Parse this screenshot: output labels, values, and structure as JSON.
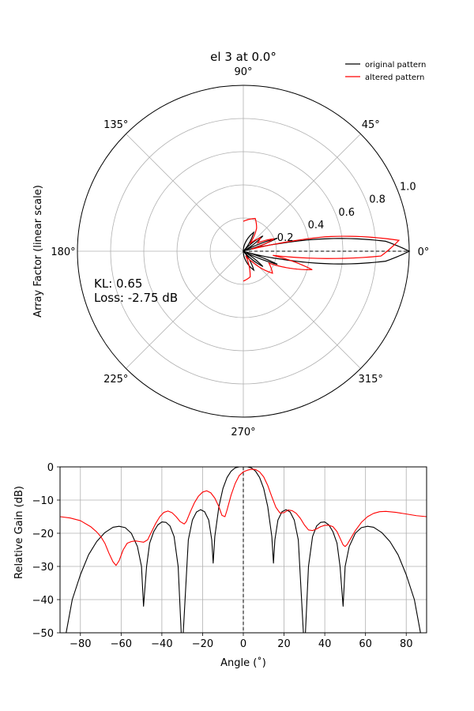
{
  "chart_data": [
    {
      "type": "line",
      "projection": "polar",
      "title": "el 3 at 0.0°",
      "ylabel": "Array Factor (linear scale)",
      "theta_tick_labels": [
        "0°",
        "45°",
        "90°",
        "135°",
        "180°",
        "225°",
        "270°",
        "315°"
      ],
      "r_tick_labels": [
        "0.2",
        "0.4",
        "0.6",
        "0.8",
        "1.0"
      ],
      "rlim": [
        0,
        1.0
      ],
      "grid": true,
      "legend_position": "top-right",
      "annotation": [
        "KL: 0.65",
        "Loss: -2.75 dB"
      ],
      "reference_line": {
        "theta_deg": 0,
        "style": "dashed",
        "r": [
          0,
          1.0
        ]
      },
      "series": [
        {
          "name": "original pattern",
          "color": "#000000",
          "x_unit": "theta_deg",
          "x": [
            0,
            4,
            8,
            12,
            16,
            21,
            26,
            30,
            38,
            48,
            61,
            75,
            90
          ],
          "y": [
            1.0,
            0.86,
            0.55,
            0.22,
            0.02,
            0.22,
            0.05,
            0.0,
            0.15,
            0.0,
            0.13,
            0.06,
            0.0
          ]
        },
        {
          "name": "altered pattern",
          "color": "#ff0000",
          "x_unit": "theta_deg",
          "x": [
            -90,
            -75,
            -62,
            -50,
            -37,
            -25,
            -15,
            -8,
            -2,
            4,
            10,
            14,
            22,
            30,
            38,
            49,
            60,
            70,
            90
          ],
          "y": [
            0.18,
            0.16,
            0.03,
            0.08,
            0.22,
            0.17,
            0.43,
            0.18,
            0.83,
            0.94,
            0.5,
            0.05,
            0.2,
            0.1,
            0.13,
            0.06,
            0.16,
            0.21,
            0.18
          ]
        }
      ]
    },
    {
      "type": "line",
      "title": "",
      "xlabel": "Angle ($^\\circ$)",
      "xlabel_display": "Angle (˚)",
      "ylabel": "Relative Gain (dB)",
      "xlim": [
        -90,
        90
      ],
      "ylim": [
        -50,
        0
      ],
      "x_ticks": [
        -80,
        -60,
        -40,
        -20,
        0,
        20,
        40,
        60,
        80
      ],
      "y_ticks": [
        0,
        -10,
        -20,
        -30,
        -40,
        -50
      ],
      "grid": true,
      "reference_line": {
        "x": 0,
        "style": "dashed"
      },
      "series": [
        {
          "name": "original pattern",
          "color": "#000000",
          "x": [
            -87,
            -84,
            -80,
            -76,
            -72,
            -68,
            -64,
            -61,
            -58,
            -55,
            -52,
            -50,
            -49,
            -47.5,
            -46,
            -44,
            -42,
            -40,
            -38,
            -36,
            -34,
            -32,
            -30.5,
            -30,
            -29.5,
            -27,
            -25,
            -23,
            -21,
            -19,
            -17,
            -15.5,
            -14.8,
            -14,
            -12,
            -10,
            -8,
            -6,
            -4,
            -2,
            0,
            2,
            4,
            6,
            8,
            10,
            12,
            14,
            14.8,
            15.5,
            17,
            19,
            21,
            23,
            25,
            27,
            29.5,
            30,
            30.5,
            32,
            34,
            36,
            38,
            40,
            42,
            44,
            46,
            47.5,
            49,
            50,
            52,
            55,
            58,
            61,
            64,
            68,
            72,
            76,
            80,
            84,
            87
          ],
          "y": [
            -50,
            -40,
            -32.5,
            -26.5,
            -22.5,
            -19.8,
            -18.2,
            -17.9,
            -18.3,
            -20,
            -24,
            -30,
            -42,
            -30,
            -23,
            -19.5,
            -17.5,
            -16.6,
            -16.7,
            -17.8,
            -21,
            -30,
            -50,
            -50,
            -50,
            -22,
            -16,
            -13.6,
            -12.9,
            -13.5,
            -16,
            -22,
            -29,
            -21,
            -12,
            -6.5,
            -3.2,
            -1.3,
            -0.3,
            0,
            0,
            0,
            -0.3,
            -1.3,
            -3.2,
            -6.5,
            -12,
            -21,
            -29,
            -22,
            -16,
            -13.5,
            -12.9,
            -13.6,
            -16,
            -22,
            -50,
            -50,
            -50,
            -30,
            -21,
            -17.8,
            -16.7,
            -16.6,
            -17.5,
            -19.5,
            -23,
            -30,
            -42,
            -30,
            -24,
            -20,
            -18.3,
            -17.9,
            -18.2,
            -19.8,
            -22.5,
            -26.5,
            -32.5,
            -40,
            -50
          ]
        },
        {
          "name": "altered pattern",
          "color": "#ff0000",
          "x": [
            -90,
            -85,
            -80,
            -75,
            -72,
            -70,
            -68,
            -66,
            -64,
            -62.5,
            -61,
            -59,
            -57,
            -55,
            -53,
            -51,
            -49,
            -47,
            -45,
            -43,
            -41,
            -39,
            -37,
            -35,
            -33,
            -31,
            -29,
            -28,
            -26,
            -24,
            -22,
            -20,
            -18,
            -16,
            -14,
            -12,
            -10.5,
            -9,
            -8,
            -6,
            -4,
            -2,
            0,
            2,
            4,
            6,
            8,
            10,
            12,
            14,
            16,
            18,
            20,
            22,
            24,
            26,
            28,
            30,
            32,
            34,
            36,
            38,
            40,
            42,
            44,
            46,
            47.5,
            49,
            50,
            51,
            53,
            55,
            58,
            61,
            64,
            67,
            70,
            75,
            80,
            85,
            90
          ],
          "y": [
            -15,
            -15.4,
            -16.2,
            -18,
            -19.6,
            -21,
            -23,
            -26,
            -28.6,
            -29.7,
            -28.3,
            -25,
            -23,
            -22.5,
            -22.3,
            -22.5,
            -22.7,
            -22,
            -19.5,
            -17,
            -15,
            -13.7,
            -13.3,
            -13.8,
            -15,
            -16.5,
            -17.2,
            -16.5,
            -13.5,
            -10.8,
            -8.8,
            -7.6,
            -7.2,
            -7.8,
            -9.4,
            -12,
            -14.6,
            -15,
            -13,
            -8.5,
            -5,
            -2.6,
            -1.5,
            -1,
            -0.7,
            -0.8,
            -1.5,
            -3,
            -5.6,
            -9,
            -12.2,
            -13.9,
            -13.8,
            -13,
            -13.2,
            -14,
            -15.5,
            -17.5,
            -19,
            -19.2,
            -18.7,
            -18,
            -17.6,
            -17.6,
            -18,
            -19.5,
            -21.5,
            -23.5,
            -24,
            -23.4,
            -21.3,
            -19.2,
            -16.7,
            -15,
            -14,
            -13.5,
            -13.4,
            -13.7,
            -14.2,
            -14.7,
            -15
          ]
        }
      ]
    }
  ]
}
